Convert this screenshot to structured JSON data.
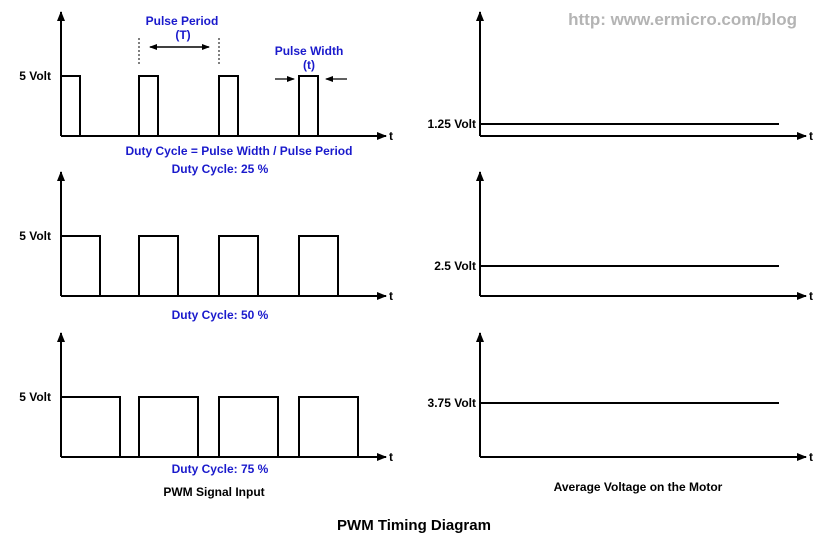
{
  "watermark": "http: www.ermicro.com/blog",
  "title": "PWM Timing Diagram",
  "left_caption": "PWM Signal Input",
  "right_caption": "Average Voltage on the Motor",
  "time_axis_label": "t",
  "high_level_label": "5 Volt",
  "annotations": {
    "pulse_period": "Pulse Period",
    "pulse_period_symbol": "(T)",
    "pulse_width": "Pulse Width",
    "pulse_width_symbol": "(t)",
    "formula": "Duty Cycle = Pulse Width / Pulse Period"
  },
  "panels": [
    {
      "duty_label": "Duty Cycle: 25 %",
      "duty": 0.25,
      "avg_label": "1.25 Volt",
      "avg_volt": 1.25
    },
    {
      "duty_label": "Duty Cycle: 50 %",
      "duty": 0.5,
      "avg_label": "2.5 Volt",
      "avg_volt": 2.5
    },
    {
      "duty_label": "Duty Cycle: 75 %",
      "duty": 0.75,
      "avg_label": "3.75 Volt",
      "avg_volt": 3.75
    }
  ],
  "colors": {
    "annotation": "#1a1acc",
    "watermark": "#b4b4b4",
    "lines": "#000000"
  }
}
